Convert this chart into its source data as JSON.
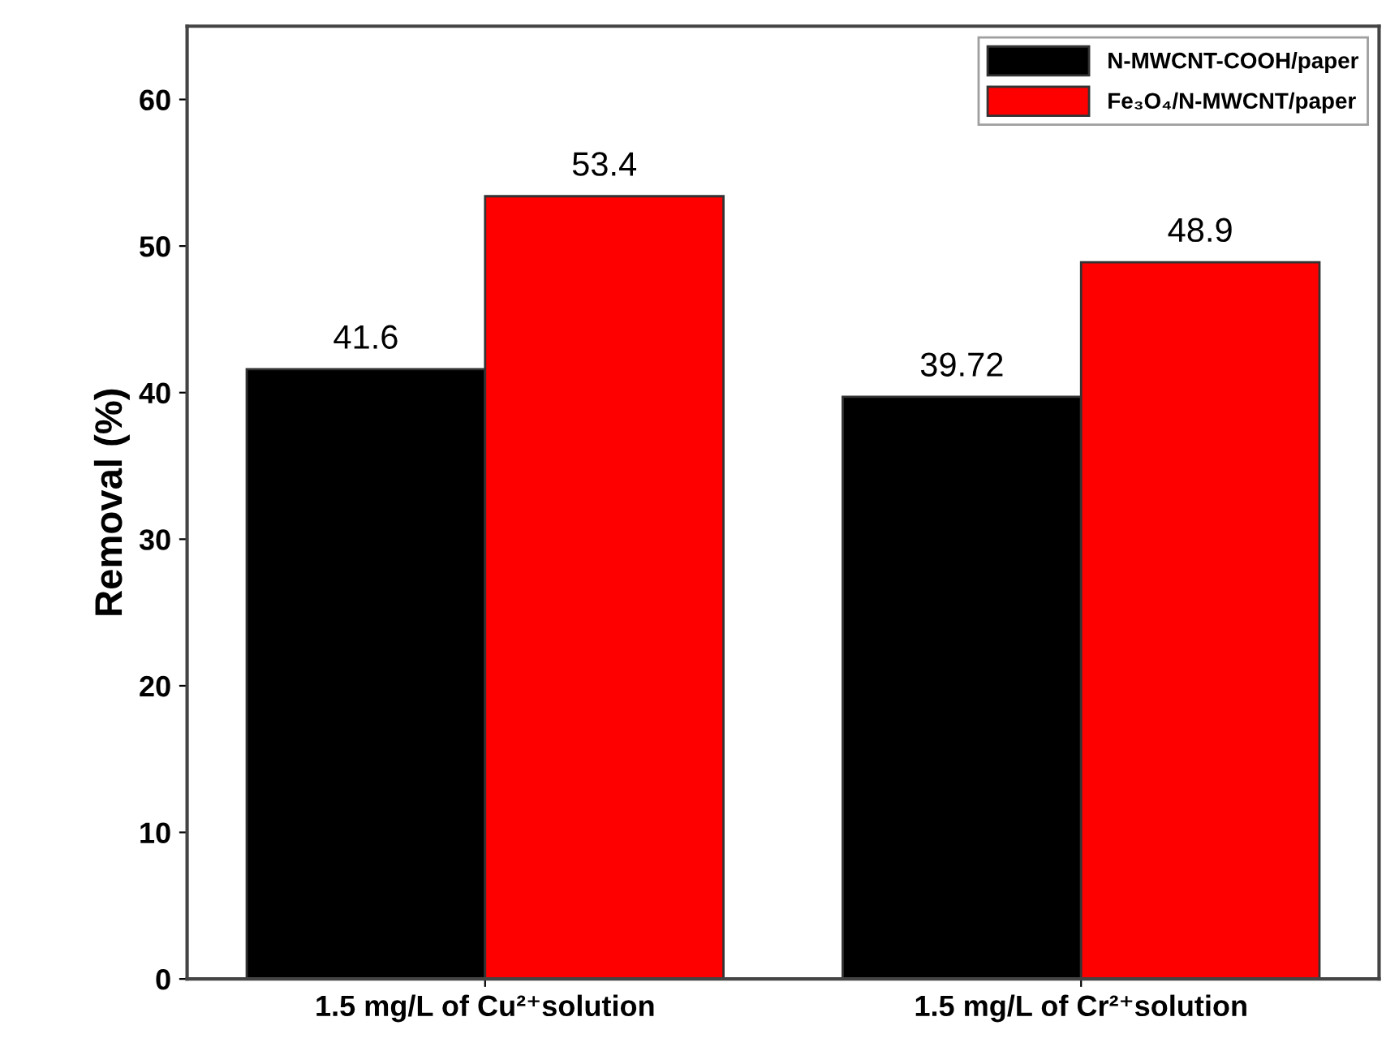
{
  "chart_data": {
    "type": "bar",
    "ylabel": "Removal (%)",
    "categories": [
      "1.5 mg/L of Cu²⁺solution",
      "1.5 mg/L of Cr²⁺solution"
    ],
    "series": [
      {
        "name": "N-MWCNT-COOH/paper",
        "color": "#000000",
        "values": [
          41.6,
          39.72
        ]
      },
      {
        "name": "Fe₃O₄/N-MWCNT/paper",
        "color": "#ff0000",
        "values": [
          53.4,
          48.9
        ]
      }
    ],
    "ylim": [
      0,
      65
    ],
    "yticks": [
      0,
      10,
      20,
      30,
      40,
      50,
      60
    ],
    "data_labels": true,
    "legend": "top right",
    "grid": false
  }
}
